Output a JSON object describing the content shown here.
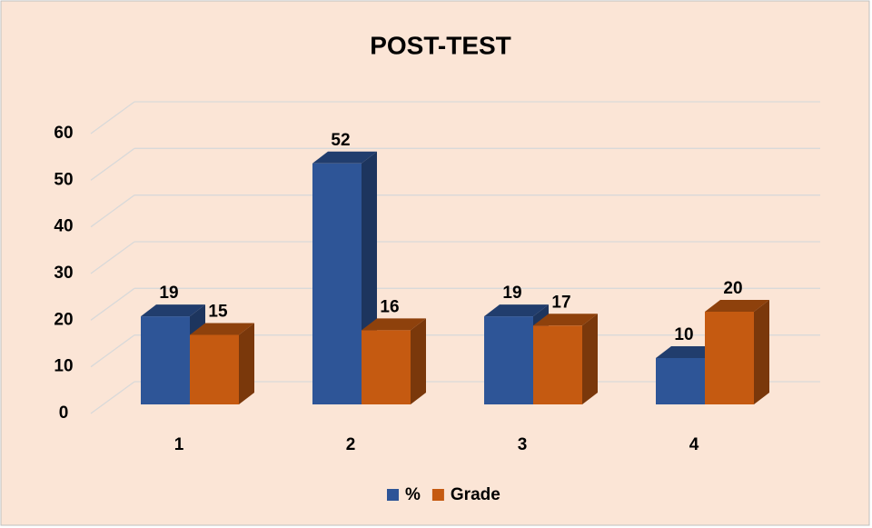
{
  "chart_data": {
    "type": "bar3d",
    "title": "POST-TEST",
    "categories": [
      "1",
      "2",
      "3",
      "4"
    ],
    "series": [
      {
        "name": "%",
        "color": "#2e5597",
        "values": [
          19,
          52,
          19,
          10
        ]
      },
      {
        "name": "Grade",
        "color": "#c55a11",
        "values": [
          15,
          16,
          17,
          20
        ]
      }
    ],
    "ylim": [
      0,
      60
    ],
    "yticks": [
      0,
      10,
      20,
      30,
      40,
      50,
      60
    ],
    "grid": true,
    "legend": "bottom"
  }
}
